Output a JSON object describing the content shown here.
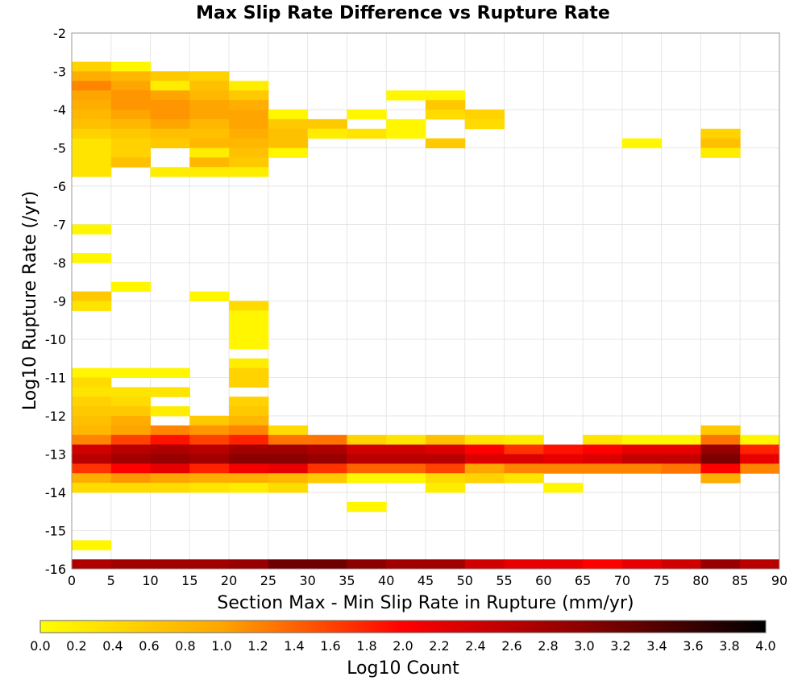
{
  "chart_data": {
    "type": "heatmap",
    "title": "Max Slip Rate Difference vs Rupture Rate",
    "xlabel": "Section Max - Min Slip Rate in Rupture (mm/yr)",
    "ylabel": "Log10 Rupture Rate (/yr)",
    "xlim": [
      0,
      90
    ],
    "ylim": [
      -16,
      -2
    ],
    "x_ticks": [
      "0",
      "5",
      "10",
      "15",
      "20",
      "25",
      "30",
      "35",
      "40",
      "45",
      "50",
      "55",
      "60",
      "65",
      "70",
      "75",
      "80",
      "85",
      "90"
    ],
    "y_ticks": [
      "-2",
      "-3",
      "-4",
      "-5",
      "-6",
      "-7",
      "-8",
      "-9",
      "-10",
      "-11",
      "-12",
      "-13",
      "-14",
      "-15",
      "-16"
    ],
    "x_bin_width": 5,
    "y_bin_height": 0.25,
    "grid": true,
    "colorbar": {
      "label": "Log10 Count",
      "range": [
        0,
        4
      ],
      "ticks": [
        "0.0",
        "0.2",
        "0.4",
        "0.6",
        "0.8",
        "1.0",
        "1.2",
        "1.4",
        "1.6",
        "1.8",
        "2.0",
        "2.2",
        "2.4",
        "2.6",
        "2.8",
        "3.0",
        "3.2",
        "3.4",
        "3.6",
        "3.8",
        "4.0"
      ],
      "colors": [
        "#ffff00",
        "#ffa500",
        "#ff0000",
        "#8b0000",
        "#000000"
      ]
    },
    "bins": [
      {
        "x": 0,
        "y": -2.75,
        "v": 0.5
      },
      {
        "x": 0,
        "y": -3.0,
        "v": 0.9
      },
      {
        "x": 0,
        "y": -3.25,
        "v": 1.2
      },
      {
        "x": 0,
        "y": -3.5,
        "v": 1.0
      },
      {
        "x": 0,
        "y": -3.75,
        "v": 0.9
      },
      {
        "x": 0,
        "y": -4.0,
        "v": 0.8
      },
      {
        "x": 0,
        "y": -4.25,
        "v": 0.7
      },
      {
        "x": 0,
        "y": -4.5,
        "v": 0.5
      },
      {
        "x": 0,
        "y": -4.75,
        "v": 0.3
      },
      {
        "x": 0,
        "y": -5.0,
        "v": 0.3
      },
      {
        "x": 0,
        "y": -5.25,
        "v": 0.3
      },
      {
        "x": 0,
        "y": -5.5,
        "v": 0.3
      },
      {
        "x": 0,
        "y": -7.0,
        "v": 0.1
      },
      {
        "x": 0,
        "y": -7.75,
        "v": 0.1
      },
      {
        "x": 0,
        "y": -8.75,
        "v": 0.6
      },
      {
        "x": 0,
        "y": -9.0,
        "v": 0.3
      },
      {
        "x": 0,
        "y": -10.75,
        "v": 0.1
      },
      {
        "x": 0,
        "y": -11.0,
        "v": 0.4
      },
      {
        "x": 0,
        "y": -11.25,
        "v": 0.3
      },
      {
        "x": 0,
        "y": -11.5,
        "v": 0.5
      },
      {
        "x": 0,
        "y": -11.75,
        "v": 0.6
      },
      {
        "x": 0,
        "y": -12.0,
        "v": 0.7
      },
      {
        "x": 0,
        "y": -12.25,
        "v": 0.8
      },
      {
        "x": 0,
        "y": -12.5,
        "v": 1.2
      },
      {
        "x": 0,
        "y": -12.75,
        "v": 2.4
      },
      {
        "x": 0,
        "y": -13.0,
        "v": 2.6
      },
      {
        "x": 0,
        "y": -13.25,
        "v": 1.7
      },
      {
        "x": 0,
        "y": -13.5,
        "v": 0.9
      },
      {
        "x": 0,
        "y": -13.75,
        "v": 0.4
      },
      {
        "x": 0,
        "y": -15.25,
        "v": 0.1
      },
      {
        "x": 0,
        "y": -15.75,
        "v": 2.7
      },
      {
        "x": 5,
        "y": -2.75,
        "v": 0.1
      },
      {
        "x": 5,
        "y": -3.0,
        "v": 0.8
      },
      {
        "x": 5,
        "y": -3.25,
        "v": 1.0
      },
      {
        "x": 5,
        "y": -3.5,
        "v": 1.1
      },
      {
        "x": 5,
        "y": -3.75,
        "v": 1.1
      },
      {
        "x": 5,
        "y": -4.0,
        "v": 1.0
      },
      {
        "x": 5,
        "y": -4.25,
        "v": 0.8
      },
      {
        "x": 5,
        "y": -4.5,
        "v": 0.6
      },
      {
        "x": 5,
        "y": -4.75,
        "v": 0.5
      },
      {
        "x": 5,
        "y": -5.0,
        "v": 0.5
      },
      {
        "x": 5,
        "y": -5.25,
        "v": 0.7
      },
      {
        "x": 5,
        "y": -8.5,
        "v": 0.1
      },
      {
        "x": 5,
        "y": -10.75,
        "v": 0.1
      },
      {
        "x": 5,
        "y": -11.25,
        "v": 0.3
      },
      {
        "x": 5,
        "y": -11.5,
        "v": 0.4
      },
      {
        "x": 5,
        "y": -11.75,
        "v": 0.6
      },
      {
        "x": 5,
        "y": -12.0,
        "v": 0.9
      },
      {
        "x": 5,
        "y": -12.25,
        "v": 1.0
      },
      {
        "x": 5,
        "y": -12.5,
        "v": 1.6
      },
      {
        "x": 5,
        "y": -12.75,
        "v": 2.6
      },
      {
        "x": 5,
        "y": -13.0,
        "v": 2.8
      },
      {
        "x": 5,
        "y": -13.25,
        "v": 2.0
      },
      {
        "x": 5,
        "y": -13.5,
        "v": 1.1
      },
      {
        "x": 5,
        "y": -13.75,
        "v": 0.4
      },
      {
        "x": 5,
        "y": -15.75,
        "v": 2.8
      },
      {
        "x": 10,
        "y": -3.0,
        "v": 0.6
      },
      {
        "x": 10,
        "y": -3.25,
        "v": 0.2
      },
      {
        "x": 10,
        "y": -3.5,
        "v": 1.0
      },
      {
        "x": 10,
        "y": -3.75,
        "v": 1.1
      },
      {
        "x": 10,
        "y": -4.0,
        "v": 1.1
      },
      {
        "x": 10,
        "y": -4.25,
        "v": 1.0
      },
      {
        "x": 10,
        "y": -4.5,
        "v": 0.7
      },
      {
        "x": 10,
        "y": -4.75,
        "v": 0.6
      },
      {
        "x": 10,
        "y": -5.5,
        "v": 0.2
      },
      {
        "x": 10,
        "y": -10.75,
        "v": 0.1
      },
      {
        "x": 10,
        "y": -11.25,
        "v": 0.3
      },
      {
        "x": 10,
        "y": -11.75,
        "v": 0.2
      },
      {
        "x": 10,
        "y": -12.25,
        "v": 1.2
      },
      {
        "x": 10,
        "y": -12.5,
        "v": 1.9
      },
      {
        "x": 10,
        "y": -12.75,
        "v": 2.7
      },
      {
        "x": 10,
        "y": -13.0,
        "v": 2.9
      },
      {
        "x": 10,
        "y": -13.25,
        "v": 2.2
      },
      {
        "x": 10,
        "y": -13.5,
        "v": 1.0
      },
      {
        "x": 10,
        "y": -13.75,
        "v": 0.4
      },
      {
        "x": 10,
        "y": -15.75,
        "v": 2.8
      },
      {
        "x": 15,
        "y": -3.0,
        "v": 0.5
      },
      {
        "x": 15,
        "y": -3.25,
        "v": 0.7
      },
      {
        "x": 15,
        "y": -3.5,
        "v": 0.8
      },
      {
        "x": 15,
        "y": -3.75,
        "v": 1.0
      },
      {
        "x": 15,
        "y": -4.0,
        "v": 1.0
      },
      {
        "x": 15,
        "y": -4.25,
        "v": 0.8
      },
      {
        "x": 15,
        "y": -4.5,
        "v": 0.7
      },
      {
        "x": 15,
        "y": -4.75,
        "v": 0.8
      },
      {
        "x": 15,
        "y": -5.0,
        "v": 0.2
      },
      {
        "x": 15,
        "y": -5.25,
        "v": 0.8
      },
      {
        "x": 15,
        "y": -5.5,
        "v": 0.2
      },
      {
        "x": 15,
        "y": -8.75,
        "v": 0.1
      },
      {
        "x": 15,
        "y": -12.0,
        "v": 0.6
      },
      {
        "x": 15,
        "y": -12.25,
        "v": 1.1
      },
      {
        "x": 15,
        "y": -12.5,
        "v": 1.6
      },
      {
        "x": 15,
        "y": -12.75,
        "v": 2.6
      },
      {
        "x": 15,
        "y": -13.0,
        "v": 2.8
      },
      {
        "x": 15,
        "y": -13.25,
        "v": 1.8
      },
      {
        "x": 15,
        "y": -13.5,
        "v": 0.9
      },
      {
        "x": 15,
        "y": -13.75,
        "v": 0.3
      },
      {
        "x": 15,
        "y": -15.75,
        "v": 2.8
      },
      {
        "x": 20,
        "y": -3.25,
        "v": 0.2
      },
      {
        "x": 20,
        "y": -3.5,
        "v": 0.6
      },
      {
        "x": 20,
        "y": -3.75,
        "v": 0.9
      },
      {
        "x": 20,
        "y": -4.0,
        "v": 1.0
      },
      {
        "x": 20,
        "y": -4.25,
        "v": 1.0
      },
      {
        "x": 20,
        "y": -4.5,
        "v": 0.9
      },
      {
        "x": 20,
        "y": -4.75,
        "v": 0.8
      },
      {
        "x": 20,
        "y": -5.0,
        "v": 0.7
      },
      {
        "x": 20,
        "y": -5.25,
        "v": 0.6
      },
      {
        "x": 20,
        "y": -5.5,
        "v": 0.2
      },
      {
        "x": 20,
        "y": -9.0,
        "v": 0.4
      },
      {
        "x": 20,
        "y": -9.25,
        "v": 0.1
      },
      {
        "x": 20,
        "y": -9.5,
        "v": 0.1
      },
      {
        "x": 20,
        "y": -9.75,
        "v": 0.1
      },
      {
        "x": 20,
        "y": -10.0,
        "v": 0.1
      },
      {
        "x": 20,
        "y": -10.5,
        "v": 0.2
      },
      {
        "x": 20,
        "y": -10.75,
        "v": 0.5
      },
      {
        "x": 20,
        "y": -11.0,
        "v": 0.5
      },
      {
        "x": 20,
        "y": -11.5,
        "v": 0.5
      },
      {
        "x": 20,
        "y": -11.75,
        "v": 0.6
      },
      {
        "x": 20,
        "y": -12.0,
        "v": 0.8
      },
      {
        "x": 20,
        "y": -12.25,
        "v": 1.2
      },
      {
        "x": 20,
        "y": -12.5,
        "v": 1.8
      },
      {
        "x": 20,
        "y": -12.75,
        "v": 2.8
      },
      {
        "x": 20,
        "y": -13.0,
        "v": 3.0
      },
      {
        "x": 20,
        "y": -13.25,
        "v": 2.1
      },
      {
        "x": 20,
        "y": -13.5,
        "v": 0.9
      },
      {
        "x": 20,
        "y": -13.75,
        "v": 0.2
      },
      {
        "x": 20,
        "y": -15.75,
        "v": 2.9
      },
      {
        "x": 25,
        "y": -4.0,
        "v": 0.1
      },
      {
        "x": 25,
        "y": -4.25,
        "v": 0.6
      },
      {
        "x": 25,
        "y": -4.5,
        "v": 0.7
      },
      {
        "x": 25,
        "y": -4.75,
        "v": 0.7
      },
      {
        "x": 25,
        "y": -5.0,
        "v": 0.1
      },
      {
        "x": 25,
        "y": -12.25,
        "v": 0.4
      },
      {
        "x": 25,
        "y": -12.5,
        "v": 1.3
      },
      {
        "x": 25,
        "y": -12.75,
        "v": 2.8
      },
      {
        "x": 25,
        "y": -13.0,
        "v": 3.0
      },
      {
        "x": 25,
        "y": -13.25,
        "v": 2.2
      },
      {
        "x": 25,
        "y": -13.5,
        "v": 0.8
      },
      {
        "x": 25,
        "y": -13.75,
        "v": 0.4
      },
      {
        "x": 25,
        "y": -15.75,
        "v": 3.2
      },
      {
        "x": 30,
        "y": -4.25,
        "v": 0.6
      },
      {
        "x": 30,
        "y": -4.5,
        "v": 0.2
      },
      {
        "x": 30,
        "y": -12.5,
        "v": 1.3
      },
      {
        "x": 30,
        "y": -12.75,
        "v": 2.7
      },
      {
        "x": 30,
        "y": -13.0,
        "v": 2.9
      },
      {
        "x": 30,
        "y": -13.25,
        "v": 1.7
      },
      {
        "x": 30,
        "y": -13.5,
        "v": 0.6
      },
      {
        "x": 30,
        "y": -15.75,
        "v": 3.2
      },
      {
        "x": 35,
        "y": -4.0,
        "v": 0.1
      },
      {
        "x": 35,
        "y": -4.5,
        "v": 0.3
      },
      {
        "x": 35,
        "y": -12.5,
        "v": 0.5
      },
      {
        "x": 35,
        "y": -12.75,
        "v": 2.4
      },
      {
        "x": 35,
        "y": -13.0,
        "v": 2.6
      },
      {
        "x": 35,
        "y": -13.25,
        "v": 1.4
      },
      {
        "x": 35,
        "y": -13.5,
        "v": 0.1
      },
      {
        "x": 35,
        "y": -14.25,
        "v": 0.1
      },
      {
        "x": 35,
        "y": -15.75,
        "v": 3.0
      },
      {
        "x": 40,
        "y": -3.5,
        "v": 0.1
      },
      {
        "x": 40,
        "y": -4.25,
        "v": 0.1
      },
      {
        "x": 40,
        "y": -4.5,
        "v": 0.1
      },
      {
        "x": 40,
        "y": -12.5,
        "v": 0.3
      },
      {
        "x": 40,
        "y": -12.75,
        "v": 2.4
      },
      {
        "x": 40,
        "y": -13.0,
        "v": 2.6
      },
      {
        "x": 40,
        "y": -13.25,
        "v": 1.4
      },
      {
        "x": 40,
        "y": -13.5,
        "v": 0.1
      },
      {
        "x": 40,
        "y": -15.75,
        "v": 2.8
      },
      {
        "x": 45,
        "y": -3.5,
        "v": 0.1
      },
      {
        "x": 45,
        "y": -3.75,
        "v": 0.6
      },
      {
        "x": 45,
        "y": -4.0,
        "v": 0.4
      },
      {
        "x": 45,
        "y": -4.75,
        "v": 0.6
      },
      {
        "x": 45,
        "y": -12.5,
        "v": 0.7
      },
      {
        "x": 45,
        "y": -12.75,
        "v": 2.3
      },
      {
        "x": 45,
        "y": -13.0,
        "v": 2.6
      },
      {
        "x": 45,
        "y": -13.25,
        "v": 1.6
      },
      {
        "x": 45,
        "y": -13.5,
        "v": 0.4
      },
      {
        "x": 45,
        "y": -13.75,
        "v": 0.2
      },
      {
        "x": 45,
        "y": -15.75,
        "v": 2.8
      },
      {
        "x": 50,
        "y": -4.0,
        "v": 0.5
      },
      {
        "x": 50,
        "y": -4.25,
        "v": 0.4
      },
      {
        "x": 50,
        "y": -12.5,
        "v": 0.3
      },
      {
        "x": 50,
        "y": -12.75,
        "v": 2.0
      },
      {
        "x": 50,
        "y": -13.0,
        "v": 2.3
      },
      {
        "x": 50,
        "y": -13.25,
        "v": 1.0
      },
      {
        "x": 50,
        "y": -13.5,
        "v": 0.5
      },
      {
        "x": 50,
        "y": -15.75,
        "v": 2.4
      },
      {
        "x": 55,
        "y": -12.5,
        "v": 0.2
      },
      {
        "x": 55,
        "y": -12.75,
        "v": 1.7
      },
      {
        "x": 55,
        "y": -13.0,
        "v": 2.3
      },
      {
        "x": 55,
        "y": -13.25,
        "v": 1.2
      },
      {
        "x": 55,
        "y": -13.5,
        "v": 0.3
      },
      {
        "x": 55,
        "y": -15.75,
        "v": 2.2
      },
      {
        "x": 60,
        "y": -12.75,
        "v": 1.9
      },
      {
        "x": 60,
        "y": -13.0,
        "v": 2.2
      },
      {
        "x": 60,
        "y": -13.25,
        "v": 1.2
      },
      {
        "x": 60,
        "y": -13.75,
        "v": 0.1
      },
      {
        "x": 60,
        "y": -15.75,
        "v": 2.2
      },
      {
        "x": 65,
        "y": -12.5,
        "v": 0.3
      },
      {
        "x": 65,
        "y": -12.75,
        "v": 2.0
      },
      {
        "x": 65,
        "y": -13.0,
        "v": 2.3
      },
      {
        "x": 65,
        "y": -13.25,
        "v": 1.2
      },
      {
        "x": 65,
        "y": -15.75,
        "v": 2.0
      },
      {
        "x": 70,
        "y": -4.75,
        "v": 0.1
      },
      {
        "x": 70,
        "y": -12.5,
        "v": 0.1
      },
      {
        "x": 70,
        "y": -12.75,
        "v": 2.2
      },
      {
        "x": 70,
        "y": -13.0,
        "v": 2.5
      },
      {
        "x": 70,
        "y": -13.25,
        "v": 1.2
      },
      {
        "x": 70,
        "y": -15.75,
        "v": 2.2
      },
      {
        "x": 75,
        "y": -12.5,
        "v": 0.1
      },
      {
        "x": 75,
        "y": -12.75,
        "v": 2.2
      },
      {
        "x": 75,
        "y": -13.0,
        "v": 2.5
      },
      {
        "x": 75,
        "y": -13.25,
        "v": 1.3
      },
      {
        "x": 75,
        "y": -15.75,
        "v": 2.4
      },
      {
        "x": 80,
        "y": -4.5,
        "v": 0.5
      },
      {
        "x": 80,
        "y": -4.75,
        "v": 0.7
      },
      {
        "x": 80,
        "y": -5.0,
        "v": 0.2
      },
      {
        "x": 80,
        "y": -12.25,
        "v": 0.6
      },
      {
        "x": 80,
        "y": -12.5,
        "v": 1.3
      },
      {
        "x": 80,
        "y": -12.75,
        "v": 2.9
      },
      {
        "x": 80,
        "y": -13.0,
        "v": 3.1
      },
      {
        "x": 80,
        "y": -13.25,
        "v": 2.0
      },
      {
        "x": 80,
        "y": -13.5,
        "v": 0.9
      },
      {
        "x": 80,
        "y": -15.75,
        "v": 2.9
      },
      {
        "x": 85,
        "y": -12.5,
        "v": 0.1
      },
      {
        "x": 85,
        "y": -12.75,
        "v": 1.8
      },
      {
        "x": 85,
        "y": -13.0,
        "v": 2.2
      },
      {
        "x": 85,
        "y": -13.25,
        "v": 1.2
      },
      {
        "x": 85,
        "y": -15.75,
        "v": 2.6
      }
    ]
  }
}
